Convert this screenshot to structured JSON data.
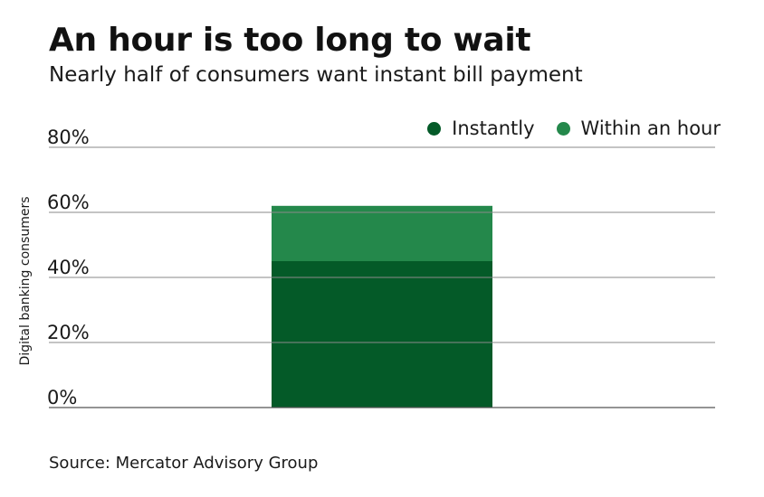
{
  "title": "An hour is too long to wait",
  "subtitle": "Nearly half of consumers want instant bill payment",
  "source": "Source: Mercator Advisory Group",
  "chart_data": {
    "type": "bar",
    "stacked": true,
    "title": "An hour is too long to wait",
    "subtitle": "Nearly half of consumers want instant bill payment",
    "xlabel": "",
    "ylabel": "Digital banking consumers",
    "categories": [
      ""
    ],
    "series": [
      {
        "name": "Instantly",
        "values": [
          45
        ],
        "color": "#045a28"
      },
      {
        "name": "Within an hour",
        "values": [
          17
        ],
        "color": "#24884b"
      }
    ],
    "ylim": [
      0,
      80
    ],
    "yticks": [
      0,
      20,
      40,
      60,
      80
    ],
    "ytick_labels": [
      "0%",
      "20%",
      "40%",
      "60%",
      "80%"
    ],
    "grid": true,
    "legend": "top-right"
  }
}
